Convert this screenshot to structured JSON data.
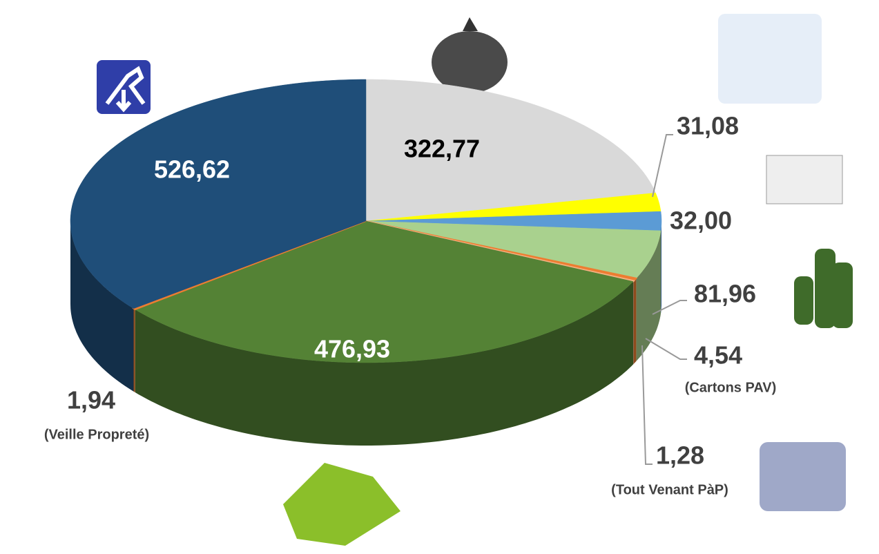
{
  "chart_data": {
    "type": "pie",
    "categories": [
      null,
      null,
      null,
      null,
      "(Cartons PAV)",
      "(Tout Venant PàP)",
      null,
      "(Veille Propreté)",
      null
    ],
    "values": [
      322.77,
      31.08,
      32.0,
      81.96,
      4.54,
      1.28,
      476.93,
      1.94,
      526.62
    ],
    "value_labels": [
      "322,77",
      "31,08",
      "32,00",
      "81,96",
      "4,54",
      "1,28",
      "476,93",
      "1,94",
      "526,62"
    ],
    "colors": [
      "#d9d9d9",
      "#ffff00",
      "#5b9bd5",
      "#a9d18e",
      "#ed7d31",
      "#f4b183",
      "#548235",
      "#ed7d31",
      "#1f4e79"
    ]
  }
}
